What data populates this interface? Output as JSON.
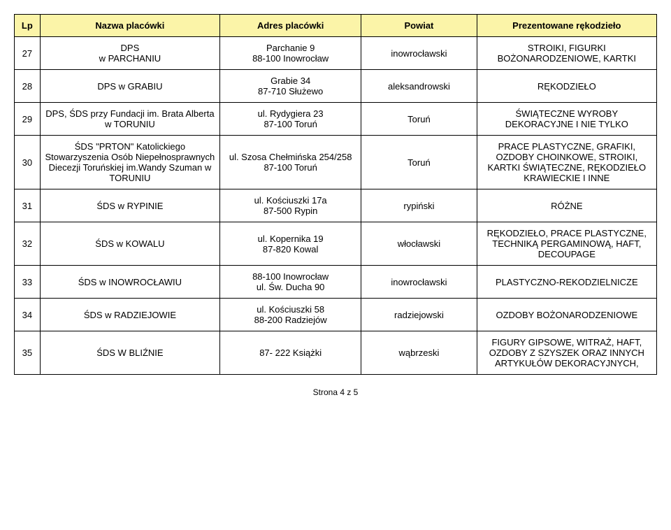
{
  "header": {
    "bg_color": "#fbf4a8",
    "columns": [
      "Lp",
      "Nazwa placówki",
      "Adres placówki",
      "Powiat",
      "Prezentowane rękodzieło"
    ]
  },
  "rows": [
    {
      "lp": "27",
      "nazwa": "DPS\nw PARCHANIU",
      "adres": "Parchanie 9\n88-100 Inowrocław",
      "powiat": "inowrocławski",
      "rekodzielo": "STROIKI, FIGURKI BOŻONARODZENIOWE, KARTKI"
    },
    {
      "lp": "28",
      "nazwa": "DPS w  GRABIU",
      "adres": "Grabie 34\n87-710 Służewo",
      "powiat": "aleksandrowski",
      "rekodzielo": "RĘKODZIEŁO"
    },
    {
      "lp": "29",
      "nazwa": "DPS, ŚDS przy Fundacji im. Brata Alberta w TORUNIU",
      "adres": "ul. Rydygiera 23\n87-100 Toruń",
      "powiat": "Toruń",
      "rekodzielo": "ŚWIĄTECZNE WYROBY DEKORACYJNE I NIE TYLKO"
    },
    {
      "lp": "30",
      "nazwa": "ŚDS \"PRTON\" Katolickiego Stowarzyszenia Osób Niepełnosprawnych Diecezji Toruńskiej im.Wandy Szuman w TORUNIU",
      "adres": "ul. Szosa Chełmińska 254/258\n87-100 Toruń",
      "powiat": "Toruń",
      "rekodzielo": "PRACE PLASTYCZNE, GRAFIKI, OZDOBY CHOINKOWE, STROIKI, KARTKI ŚWIĄTECZNE, RĘKODZIEŁO KRAWIECKIE I INNE"
    },
    {
      "lp": "31",
      "nazwa": "ŚDS w RYPINIE",
      "adres": "ul. Kościuszki 17a\n87-500 Rypin",
      "powiat": "rypiński",
      "rekodzielo": "RÓŻNE"
    },
    {
      "lp": "32",
      "nazwa": "ŚDS w KOWALU",
      "adres": "ul. Kopernika 19\n87-820 Kowal",
      "powiat": "włocławski",
      "rekodzielo": "RĘKODZIEŁO, PRACE PLASTYCZNE, TECHNIKĄ PERGAMINOWĄ, HAFT, DECOUPAGE"
    },
    {
      "lp": "33",
      "nazwa": "ŚDS w INOWROCŁAWIU",
      "adres": "88-100 Inowrocław\nul. Św. Ducha 90",
      "powiat": "inowrocławski",
      "rekodzielo": "PLASTYCZNO-REKODZIELNICZE"
    },
    {
      "lp": "34",
      "nazwa": "ŚDS w RADZIEJOWIE",
      "adres": "ul. Kościuszki 58\n88-200 Radziejów",
      "powiat": "radziejowski",
      "rekodzielo": "OZDOBY BOŻONARODZENIOWE"
    },
    {
      "lp": "35",
      "nazwa": "ŚDS  W BLIŹNIE",
      "adres": "87- 222 Książki",
      "powiat": "wąbrzeski",
      "rekodzielo": "FIGURY GIPSOWE, WITRAŻ, HAFT, OZDOBY Z SZYSZEK ORAZ INNYCH ARTYKUŁÓW DEKORACYJNYCH,"
    }
  ],
  "footer": "Strona 4 z 5"
}
